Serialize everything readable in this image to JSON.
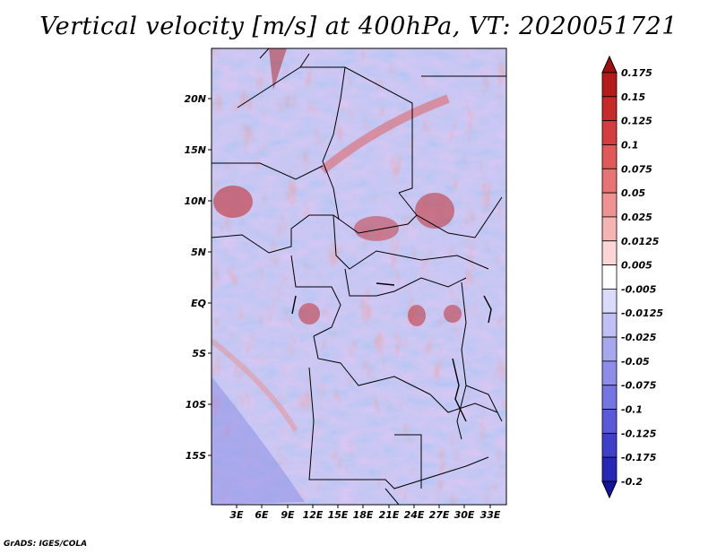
{
  "title": "Vertical velocity [m/s] at 400hPa, VT: 2020051721",
  "footer": "GrADS: IGES/COLA",
  "map": {
    "lat_labels": [
      "20N",
      "15N",
      "10N",
      "5N",
      "EQ",
      "5S",
      "10S",
      "15S"
    ],
    "lon_labels": [
      "3E",
      "6E",
      "9E",
      "12E",
      "15E",
      "18E",
      "21E",
      "24E",
      "27E",
      "30E",
      "33E"
    ],
    "field": "vertical velocity",
    "colors": {
      "border": "#000000",
      "background": "#ffffff"
    }
  },
  "colorbar": {
    "labels": [
      "0.175",
      "0.15",
      "0.125",
      "0.1",
      "0.075",
      "0.05",
      "0.025",
      "0.0125",
      "0.005",
      "-0.005",
      "-0.0125",
      "-0.025",
      "-0.05",
      "-0.075",
      "-0.1",
      "-0.125",
      "-0.175",
      "-0.2"
    ],
    "colors": [
      "#a01010",
      "#b51b1b",
      "#c82a2a",
      "#d43d3d",
      "#e05858",
      "#e87373",
      "#ef9292",
      "#f5b3b3",
      "#fad6d6",
      "#ffffff",
      "#dadafa",
      "#c0c0f5",
      "#a7a7f0",
      "#8e8eea",
      "#7474e2",
      "#5a5ad8",
      "#3f3fc9",
      "#2828b8",
      "#1414a0"
    ]
  }
}
